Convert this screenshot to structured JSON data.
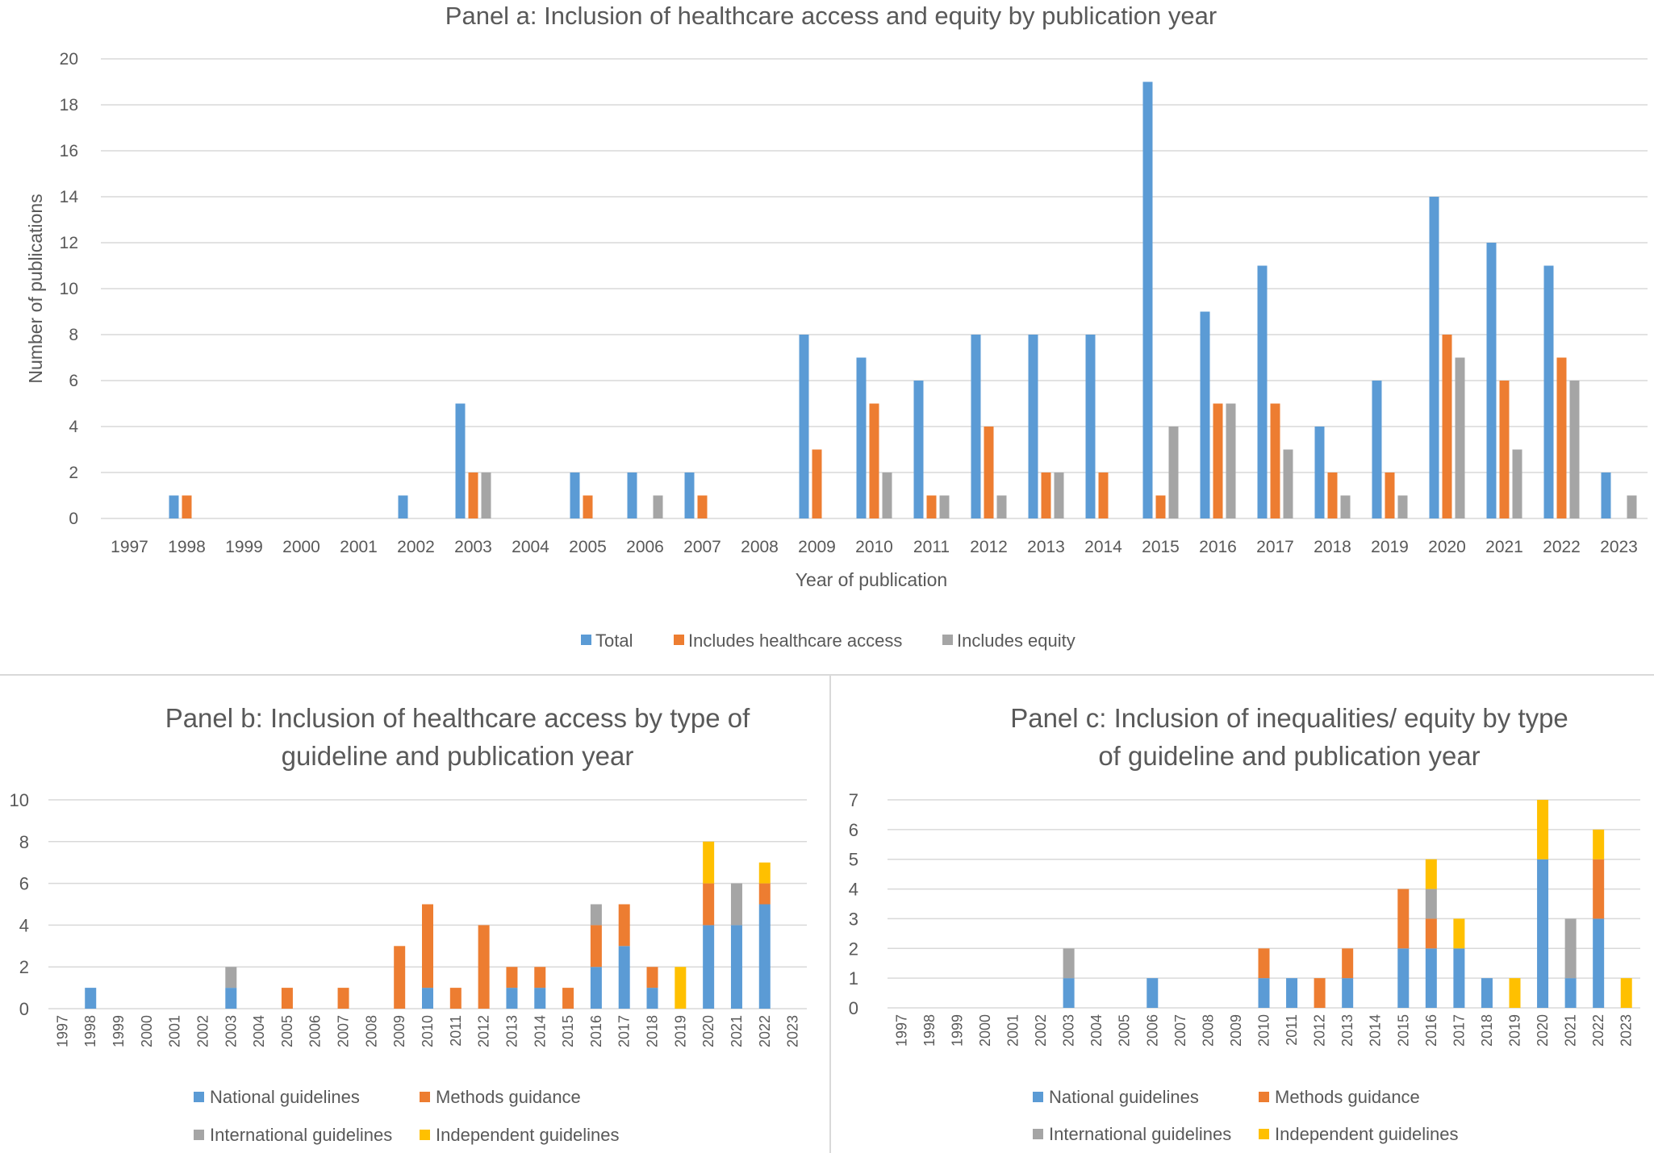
{
  "colors": {
    "total": "#5B9BD5",
    "access": "#ED7D31",
    "equity": "#A5A5A5",
    "national": "#5B9BD5",
    "methods": "#ED7D31",
    "international": "#A5A5A5",
    "independent": "#FFC000"
  },
  "chart_data": [
    {
      "type": "bar",
      "title": "Panel a: Inclusion of healthcare access and equity by publication year",
      "xlabel": "Year of publication",
      "ylabel": "Number of publications",
      "ylim": [
        0,
        20
      ],
      "yticks": [
        "0",
        "2",
        "4",
        "6",
        "8",
        "10",
        "12",
        "14",
        "16",
        "18",
        "20"
      ],
      "categories": [
        "1997",
        "1998",
        "1999",
        "2000",
        "2001",
        "2002",
        "2003",
        "2004",
        "2005",
        "2006",
        "2007",
        "2008",
        "2009",
        "2010",
        "2011",
        "2012",
        "2013",
        "2014",
        "2015",
        "2016",
        "2017",
        "2018",
        "2019",
        "2020",
        "2021",
        "2022",
        "2023"
      ],
      "series": [
        {
          "name": "Total",
          "color_key": "total",
          "values": [
            0,
            1,
            0,
            0,
            0,
            1,
            5,
            0,
            2,
            2,
            2,
            0,
            8,
            7,
            6,
            8,
            8,
            8,
            19,
            9,
            11,
            4,
            6,
            14,
            12,
            11,
            2
          ]
        },
        {
          "name": "Includes healthcare access",
          "color_key": "access",
          "values": [
            0,
            1,
            0,
            0,
            0,
            0,
            2,
            0,
            1,
            0,
            1,
            0,
            3,
            5,
            1,
            4,
            2,
            2,
            1,
            5,
            5,
            2,
            2,
            8,
            6,
            7,
            0
          ]
        },
        {
          "name": "Includes equity",
          "color_key": "equity",
          "values": [
            0,
            0,
            0,
            0,
            0,
            0,
            2,
            0,
            0,
            1,
            0,
            0,
            0,
            2,
            1,
            1,
            2,
            0,
            4,
            5,
            3,
            1,
            1,
            7,
            3,
            6,
            1
          ]
        }
      ],
      "legend": "bottom"
    },
    {
      "type": "bar",
      "stacked": true,
      "title_lines": [
        "Panel b: Inclusion of healthcare access by type of",
        "guideline and publication year"
      ],
      "ylim": [
        0,
        10
      ],
      "yticks": [
        "0",
        "2",
        "4",
        "6",
        "8",
        "10"
      ],
      "categories": [
        "1997",
        "1998",
        "1999",
        "2000",
        "2001",
        "2002",
        "2003",
        "2004",
        "2005",
        "2006",
        "2007",
        "2008",
        "2009",
        "2010",
        "2011",
        "2012",
        "2013",
        "2014",
        "2015",
        "2016",
        "2017",
        "2018",
        "2019",
        "2020",
        "2021",
        "2022",
        "2023"
      ],
      "series": [
        {
          "name": "National guidelines",
          "color_key": "national",
          "values": [
            0,
            1,
            0,
            0,
            0,
            0,
            1,
            0,
            0,
            0,
            0,
            0,
            0,
            1,
            0,
            0,
            1,
            1,
            0,
            2,
            3,
            1,
            0,
            4,
            4,
            5,
            0
          ]
        },
        {
          "name": "Methods guidance",
          "color_key": "methods",
          "values": [
            0,
            0,
            0,
            0,
            0,
            0,
            0,
            0,
            1,
            0,
            1,
            0,
            3,
            4,
            1,
            4,
            1,
            1,
            1,
            2,
            2,
            1,
            0,
            2,
            0,
            1,
            0
          ]
        },
        {
          "name": "International guidelines",
          "color_key": "international",
          "values": [
            0,
            0,
            0,
            0,
            0,
            0,
            1,
            0,
            0,
            0,
            0,
            0,
            0,
            0,
            0,
            0,
            0,
            0,
            0,
            1,
            0,
            0,
            0,
            0,
            2,
            0,
            0
          ]
        },
        {
          "name": "Independent guidelines",
          "color_key": "independent",
          "values": [
            0,
            0,
            0,
            0,
            0,
            0,
            0,
            0,
            0,
            0,
            0,
            0,
            0,
            0,
            0,
            0,
            0,
            0,
            0,
            0,
            0,
            0,
            2,
            2,
            0,
            1,
            0
          ]
        }
      ],
      "legend": "bottom"
    },
    {
      "type": "bar",
      "stacked": true,
      "title_lines": [
        "Panel c: Inclusion of inequalities/ equity by type",
        "of guideline and publication year"
      ],
      "ylim": [
        0,
        7
      ],
      "yticks": [
        "0",
        "1",
        "2",
        "3",
        "4",
        "5",
        "6",
        "7"
      ],
      "categories": [
        "1997",
        "1998",
        "1999",
        "2000",
        "2001",
        "2002",
        "2003",
        "2004",
        "2005",
        "2006",
        "2007",
        "2008",
        "2009",
        "2010",
        "2011",
        "2012",
        "2013",
        "2014",
        "2015",
        "2016",
        "2017",
        "2018",
        "2019",
        "2020",
        "2021",
        "2022",
        "2023"
      ],
      "series": [
        {
          "name": "National guidelines",
          "color_key": "national",
          "values": [
            0,
            0,
            0,
            0,
            0,
            0,
            1,
            0,
            0,
            1,
            0,
            0,
            0,
            1,
            1,
            0,
            1,
            0,
            2,
            2,
            2,
            1,
            0,
            5,
            1,
            3,
            0
          ]
        },
        {
          "name": "Methods guidance",
          "color_key": "methods",
          "values": [
            0,
            0,
            0,
            0,
            0,
            0,
            0,
            0,
            0,
            0,
            0,
            0,
            0,
            1,
            0,
            1,
            1,
            0,
            2,
            1,
            0,
            0,
            0,
            0,
            0,
            2,
            0
          ]
        },
        {
          "name": "International guidelines",
          "color_key": "international",
          "values": [
            0,
            0,
            0,
            0,
            0,
            0,
            1,
            0,
            0,
            0,
            0,
            0,
            0,
            0,
            0,
            0,
            0,
            0,
            0,
            1,
            0,
            0,
            0,
            0,
            2,
            0,
            0
          ]
        },
        {
          "name": "Independent guidelines",
          "color_key": "independent",
          "values": [
            0,
            0,
            0,
            0,
            0,
            0,
            0,
            0,
            0,
            0,
            0,
            0,
            0,
            0,
            0,
            0,
            0,
            0,
            0,
            1,
            1,
            0,
            1,
            2,
            0,
            1,
            1
          ]
        }
      ],
      "legend": "bottom"
    }
  ]
}
